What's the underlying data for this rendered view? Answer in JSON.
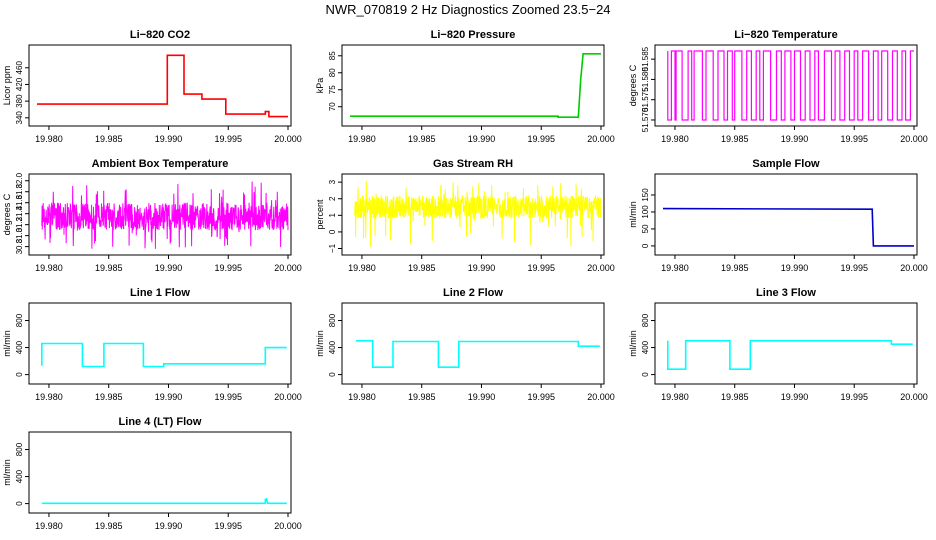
{
  "figure_title": "NWR_070819  2 Hz Diagnostics Zoomed 23.5−24",
  "chart_data": [
    {
      "type": "line",
      "title": "Li−820 CO2",
      "ylabel": "Licor ppm",
      "xlabel": "",
      "color": "#ff0000",
      "xlim": [
        19.979,
        20.0
      ],
      "ylim": [
        330,
        505
      ],
      "xticks": [
        "19.980",
        "19.985",
        "19.990",
        "19.995",
        "20.000"
      ],
      "xtick_values": [
        19.98,
        19.985,
        19.99,
        19.995,
        20.0
      ],
      "yticks": [
        "340",
        "380",
        "420",
        "460"
      ],
      "ytick_values": [
        340,
        380,
        420,
        460
      ],
      "series": [
        {
          "x": [
            19.979,
            19.9899,
            19.9899,
            19.9913,
            19.9913,
            19.9928,
            19.9928,
            19.9948,
            19.9948,
            19.9981,
            19.9981,
            19.9984,
            19.9984,
            20.0
          ],
          "y": [
            373,
            373,
            490,
            490,
            397,
            397,
            385,
            385,
            349,
            349,
            355,
            355,
            343,
            343
          ]
        }
      ]
    },
    {
      "type": "line",
      "title": "Li−820 Pressure",
      "ylabel": "kPa",
      "xlabel": "",
      "color": "#00cc00",
      "xlim": [
        19.979,
        20.0
      ],
      "ylim": [
        65.5,
        87
      ],
      "xticks": [
        "19.980",
        "19.985",
        "19.990",
        "19.995",
        "20.000"
      ],
      "xtick_values": [
        19.98,
        19.985,
        19.99,
        19.995,
        20.0
      ],
      "yticks": [
        "70",
        "75",
        "80",
        "85"
      ],
      "ytick_values": [
        70,
        75,
        80,
        85
      ],
      "series": [
        {
          "x": [
            19.979,
            19.9964,
            19.9964,
            19.9981,
            19.9983,
            19.9985,
            20.0
          ],
          "y": [
            67.2,
            67.2,
            66.9,
            66.9,
            78,
            85.6,
            85.6
          ]
        }
      ]
    },
    {
      "type": "line",
      "title": "Li−820 Temperature",
      "ylabel": "degrees C",
      "xlabel": "",
      "color": "#ff00ff",
      "xlim": [
        19.979,
        20.0
      ],
      "ylim": [
        51.5695,
        51.5875
      ],
      "xticks": [
        "19.980",
        "19.985",
        "19.990",
        "19.995",
        "20.000"
      ],
      "xtick_values": [
        19.98,
        19.985,
        19.99,
        19.995,
        20.0
      ],
      "yticks": [
        "51.570",
        "51.575",
        "51.580",
        "51.585"
      ],
      "ytick_values": [
        51.57,
        51.575,
        51.58,
        51.585
      ],
      "series": [
        {
          "toggle_between": [
            51.57,
            51.587
          ],
          "switch_points": [
            19.9794,
            19.9797,
            19.98,
            19.9801,
            19.9806,
            19.9811,
            19.9814,
            19.9816,
            19.9823,
            19.9826,
            19.9832,
            19.9836,
            19.9841,
            19.9844,
            19.9848,
            19.985,
            19.9856,
            19.986,
            19.9864,
            19.9868,
            19.9871,
            19.9874,
            19.988,
            19.9885,
            19.9889,
            19.9892,
            19.9897,
            19.99,
            19.9905,
            19.9909,
            19.9913,
            19.9917,
            19.992,
            19.9925,
            19.9931,
            19.9934,
            19.9938,
            19.9942,
            19.9946,
            19.995,
            19.9953,
            19.9957,
            19.9962,
            19.9966,
            19.997,
            19.9973,
            19.9978,
            19.9982,
            19.9986,
            19.999,
            19.9993,
            19.9997
          ]
        }
      ]
    },
    {
      "type": "line",
      "title": "Ambient Box Temperature",
      "ylabel": "degrees C",
      "xlabel": "",
      "color": "#ff00ff",
      "xlim": [
        19.979,
        20.0
      ],
      "ylim": [
        30.72,
        32.05
      ],
      "xticks": [
        "19.980",
        "19.985",
        "19.990",
        "19.995",
        "20.000"
      ],
      "xtick_values": [
        19.98,
        19.985,
        19.99,
        19.995,
        20.0
      ],
      "yticks": [
        "30.8",
        "31.0",
        "31.2",
        "31.4",
        "31.6",
        "31.8",
        "32.0"
      ],
      "ytick_values": [
        30.8,
        31.0,
        31.2,
        31.4,
        31.6,
        31.8,
        32.0
      ],
      "series": [
        {
          "noise": {
            "center": 31.35,
            "typical_low": 31.1,
            "typical_high": 31.6,
            "min": 30.75,
            "max": 32.0
          }
        }
      ]
    },
    {
      "type": "line",
      "title": "Gas Stream RH",
      "ylabel": "percent",
      "xlabel": "",
      "color": "#ffff00",
      "xlim": [
        19.979,
        20.0
      ],
      "ylim": [
        -1.15,
        3.25
      ],
      "xticks": [
        "19.980",
        "19.985",
        "19.990",
        "19.995",
        "20.000"
      ],
      "xtick_values": [
        19.98,
        19.985,
        19.99,
        19.995,
        20.0
      ],
      "yticks": [
        "−1",
        "0",
        "1",
        "2",
        "3"
      ],
      "ytick_values": [
        -1,
        0,
        1,
        2,
        3
      ],
      "series": [
        {
          "noise": {
            "center": 1.5,
            "typical_low": 0.8,
            "typical_high": 2.2,
            "min": -0.9,
            "max": 3.1
          }
        }
      ]
    },
    {
      "type": "line",
      "title": "Sample Flow",
      "ylabel": "ml/min",
      "xlabel": "",
      "color": "#0000cc",
      "xlim": [
        19.979,
        20.0
      ],
      "ylim": [
        -15,
        200
      ],
      "xticks": [
        "19.980",
        "19.985",
        "19.990",
        "19.995",
        "20.000"
      ],
      "xtick_values": [
        19.98,
        19.985,
        19.99,
        19.995,
        20.0
      ],
      "yticks": [
        "0",
        "50",
        "100",
        "150"
      ],
      "ytick_values": [
        0,
        50,
        100,
        150
      ],
      "series": [
        {
          "x": [
            19.979,
            19.9965,
            19.9965,
            19.9966,
            19.9966,
            20.0
          ],
          "y": [
            110,
            108,
            108,
            0,
            0,
            0
          ]
        }
      ]
    },
    {
      "type": "line",
      "title": "Line 1 Flow",
      "ylabel": "ml/min",
      "xlabel": "",
      "color": "#00ffff",
      "xlim": [
        19.979,
        20.0
      ],
      "ylim": [
        -80,
        1000
      ],
      "xticks": [
        "19.980",
        "19.985",
        "19.990",
        "19.995",
        "20.000"
      ],
      "xtick_values": [
        19.98,
        19.985,
        19.99,
        19.995,
        20.0
      ],
      "yticks": [
        "0",
        "400",
        "800"
      ],
      "ytick_values": [
        0,
        400,
        800
      ],
      "series": [
        {
          "x": [
            19.9794,
            19.9794,
            19.9828,
            19.9828,
            19.9846,
            19.9846,
            19.9879,
            19.9879,
            19.9896,
            19.9896,
            19.9981,
            19.9981,
            19.9999
          ],
          "y": [
            130,
            460,
            460,
            120,
            120,
            460,
            460,
            120,
            120,
            160,
            160,
            400,
            400
          ]
        }
      ]
    },
    {
      "type": "line",
      "title": "Line 2 Flow",
      "ylabel": "ml/min",
      "xlabel": "",
      "color": "#00ffff",
      "xlim": [
        19.979,
        20.0
      ],
      "ylim": [
        -80,
        1000
      ],
      "xticks": [
        "19.980",
        "19.985",
        "19.990",
        "19.995",
        "20.000"
      ],
      "xtick_values": [
        19.98,
        19.985,
        19.99,
        19.995,
        20.0
      ],
      "yticks": [
        "0",
        "400",
        "800"
      ],
      "ytick_values": [
        0,
        400,
        800
      ],
      "series": [
        {
          "x": [
            19.9795,
            19.9809,
            19.9809,
            19.9826,
            19.9826,
            19.9864,
            19.9864,
            19.9881,
            19.9881,
            19.9981,
            19.9981,
            19.9999
          ],
          "y": [
            500,
            500,
            110,
            110,
            490,
            490,
            110,
            110,
            490,
            490,
            420,
            420
          ]
        }
      ]
    },
    {
      "type": "line",
      "title": "Line 3 Flow",
      "ylabel": "ml/min",
      "xlabel": "",
      "color": "#00ffff",
      "xlim": [
        19.979,
        20.0
      ],
      "ylim": [
        -80,
        1000
      ],
      "xticks": [
        "19.980",
        "19.985",
        "19.990",
        "19.995",
        "20.000"
      ],
      "xtick_values": [
        19.98,
        19.985,
        19.99,
        19.995,
        20.0
      ],
      "yticks": [
        "0",
        "400",
        "800"
      ],
      "ytick_values": [
        0,
        400,
        800
      ],
      "series": [
        {
          "x": [
            19.9794,
            19.9794,
            19.9809,
            19.9809,
            19.9846,
            19.9846,
            19.9863,
            19.9863,
            19.9981,
            19.9981,
            19.9999
          ],
          "y": [
            500,
            80,
            80,
            500,
            500,
            80,
            80,
            500,
            500,
            450,
            450
          ]
        }
      ]
    },
    {
      "type": "line",
      "title": "Line 4 (LT) Flow",
      "ylabel": "ml/min",
      "xlabel": "",
      "color": "#00ffff",
      "xlim": [
        19.979,
        20.0
      ],
      "ylim": [
        -80,
        1000
      ],
      "xticks": [
        "19.980",
        "19.985",
        "19.990",
        "19.995",
        "20.000"
      ],
      "xtick_values": [
        19.98,
        19.985,
        19.99,
        19.995,
        20.0
      ],
      "yticks": [
        "0",
        "400",
        "800"
      ],
      "ytick_values": [
        0,
        400,
        800
      ],
      "series": [
        {
          "x": [
            19.9794,
            19.9981,
            19.9981,
            19.9982,
            19.9983,
            19.9999
          ],
          "y": [
            5,
            5,
            60,
            70,
            5,
            5
          ]
        }
      ]
    }
  ]
}
